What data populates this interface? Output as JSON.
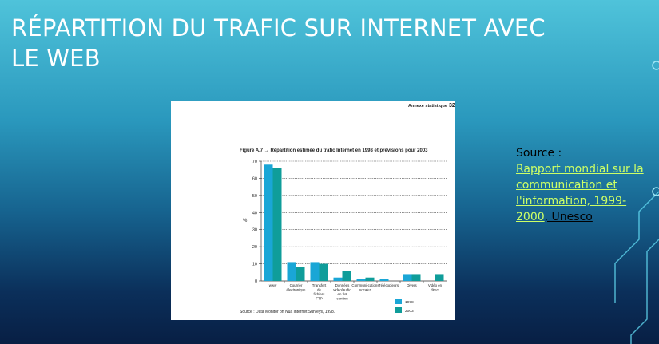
{
  "slide": {
    "title": "RÉPARTITION DU TRAFIC SUR INTERNET AVEC LE WEB"
  },
  "source": {
    "label": "Source :",
    "link_text": "Rapport mondial sur la communication et l'information, 1999-2000",
    "org_text": ", Unesco"
  },
  "figure": {
    "header_text": "Annexe statistique",
    "page_number": "32",
    "footer_text": "Source : Data Monitor on Nua Internet Surveys, 1998."
  },
  "colors": {
    "series_1998": "#1aa6d6",
    "series_2003": "#0f9d9a"
  },
  "chart_data": {
    "type": "bar",
    "title": "Figure A.7 → Répartition estimée du trafic Internet en 1998 et prévisions pour 2003",
    "ylabel": "%",
    "xlabel": "",
    "ylim": [
      0,
      70
    ],
    "yticks": [
      0,
      10,
      20,
      30,
      40,
      50,
      60,
      70
    ],
    "grid": true,
    "legend_position": "bottom-right",
    "categories": [
      "www",
      "Courrier électronique",
      "Transfert de fichiers FTP",
      "Données vidéo/audio en flot continu",
      "Communi-cations vocales",
      "Télécopieurs",
      "Divers",
      "Vidéo en direct"
    ],
    "series": [
      {
        "name": "1998",
        "values": [
          68,
          11,
          11,
          2,
          1,
          1,
          4,
          0
        ]
      },
      {
        "name": "2003",
        "values": [
          66,
          8,
          10,
          6,
          2,
          0,
          4,
          4
        ]
      }
    ]
  }
}
